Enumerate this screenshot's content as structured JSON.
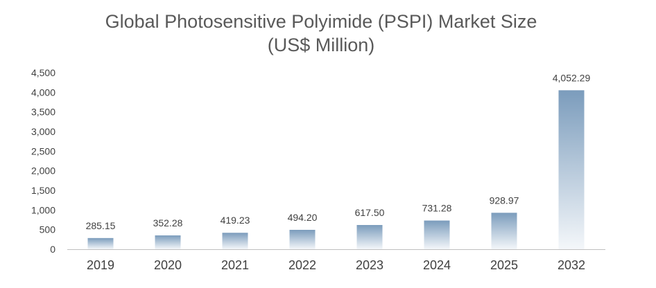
{
  "title_line1": "Global Photosensitive Polyimide (PSPI) Market Size",
  "title_line2": "(US$ Million)",
  "colors": {
    "bar_top": "#7b9cbc",
    "bar_bottom": "#f4f7fa",
    "axis": "#bfbfbf",
    "text": "#404040",
    "title": "#595959"
  },
  "chart_data": {
    "type": "bar",
    "categories": [
      "2019",
      "2020",
      "2021",
      "2022",
      "2023",
      "2024",
      "2025",
      "2032"
    ],
    "values": [
      285.15,
      352.28,
      419.23,
      494.2,
      617.5,
      731.28,
      928.97,
      4052.29
    ],
    "data_labels": [
      "285.15",
      "352.28",
      "419.23",
      "494.20",
      "617.50",
      "731.28",
      "928.97",
      "4,052.29"
    ],
    "y_ticks": [
      "0",
      "500",
      "1,000",
      "1,500",
      "2,000",
      "2,500",
      "3,000",
      "3,500",
      "4,000",
      "4,500"
    ],
    "ylim": [
      0,
      4500
    ],
    "grid": false,
    "title": "Global Photosensitive Polyimide (PSPI) Market Size (US$ Million)",
    "xlabel": "",
    "ylabel": ""
  }
}
